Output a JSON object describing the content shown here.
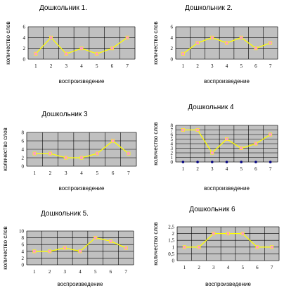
{
  "colors": {
    "plot_bg": "#c0c0c0",
    "grid": "#000000",
    "line": "#ffff00",
    "marker": "#ff99cc",
    "marker_alt": "#000080"
  },
  "chart_data": [
    {
      "type": "line",
      "title": "Дошкольник 1.",
      "xlabel": "воспроизведение",
      "ylabel": "количество слов",
      "x": [
        1,
        2,
        3,
        4,
        5,
        6,
        7
      ],
      "y": [
        1,
        4,
        1,
        2,
        1,
        2,
        4
      ],
      "ylim": [
        0,
        6
      ],
      "yticks": [
        0,
        2,
        4,
        6
      ],
      "grid": true
    },
    {
      "type": "line",
      "title": "Дошкольник 2.",
      "xlabel": "воспроизведение",
      "ylabel": "количество слов",
      "x": [
        1,
        2,
        3,
        4,
        5,
        6,
        7
      ],
      "y": [
        1,
        3,
        4,
        3,
        4,
        2,
        3
      ],
      "ylim": [
        0,
        6
      ],
      "yticks": [
        0,
        2,
        4,
        6
      ],
      "grid": true
    },
    {
      "type": "line",
      "title": "Дошкольник 3",
      "xlabel": "воспроизведение",
      "ylabel": "количество слов",
      "x": [
        1,
        2,
        3,
        4,
        5,
        6,
        7
      ],
      "y": [
        3,
        3,
        2,
        2,
        3,
        6,
        3
      ],
      "ylim": [
        0,
        8
      ],
      "yticks": [
        0,
        2,
        4,
        6,
        8
      ],
      "grid": true
    },
    {
      "type": "line",
      "title": "Дошкольник 4",
      "xlabel": "воспроизведение",
      "ylabel": "количество слов",
      "x": [
        1,
        2,
        3,
        4,
        5,
        6,
        7
      ],
      "y": [
        7,
        7,
        2,
        5,
        3,
        4,
        6
      ],
      "ylim": [
        0,
        8
      ],
      "yticks": [
        0,
        1,
        2,
        3,
        4,
        5,
        6,
        7,
        8
      ],
      "grid": true,
      "baseline_series": [
        0,
        0,
        0,
        0,
        0,
        0,
        0
      ]
    },
    {
      "type": "line",
      "title": "Дошкольник 5.",
      "xlabel": "воспроизведение",
      "ylabel": "количество слов",
      "x": [
        1,
        2,
        3,
        4,
        5,
        6,
        7
      ],
      "y": [
        4,
        4,
        5,
        4,
        8,
        7,
        5
      ],
      "ylim": [
        0,
        10
      ],
      "yticks": [
        0,
        2,
        4,
        6,
        8,
        10
      ],
      "grid": true
    },
    {
      "type": "line",
      "title": "Дошкольник 6",
      "xlabel": "воспроизведение",
      "ylabel": "количество слов",
      "x": [
        1,
        2,
        3,
        4,
        5,
        6,
        7
      ],
      "y": [
        1,
        1,
        2,
        2,
        2,
        1,
        1
      ],
      "ylim": [
        0,
        2.5
      ],
      "yticks": [
        "0",
        "0,5",
        "1",
        "1,5",
        "2",
        "2,5"
      ],
      "ytickvals": [
        0,
        0.5,
        1,
        1.5,
        2,
        2.5
      ],
      "grid": true
    }
  ]
}
